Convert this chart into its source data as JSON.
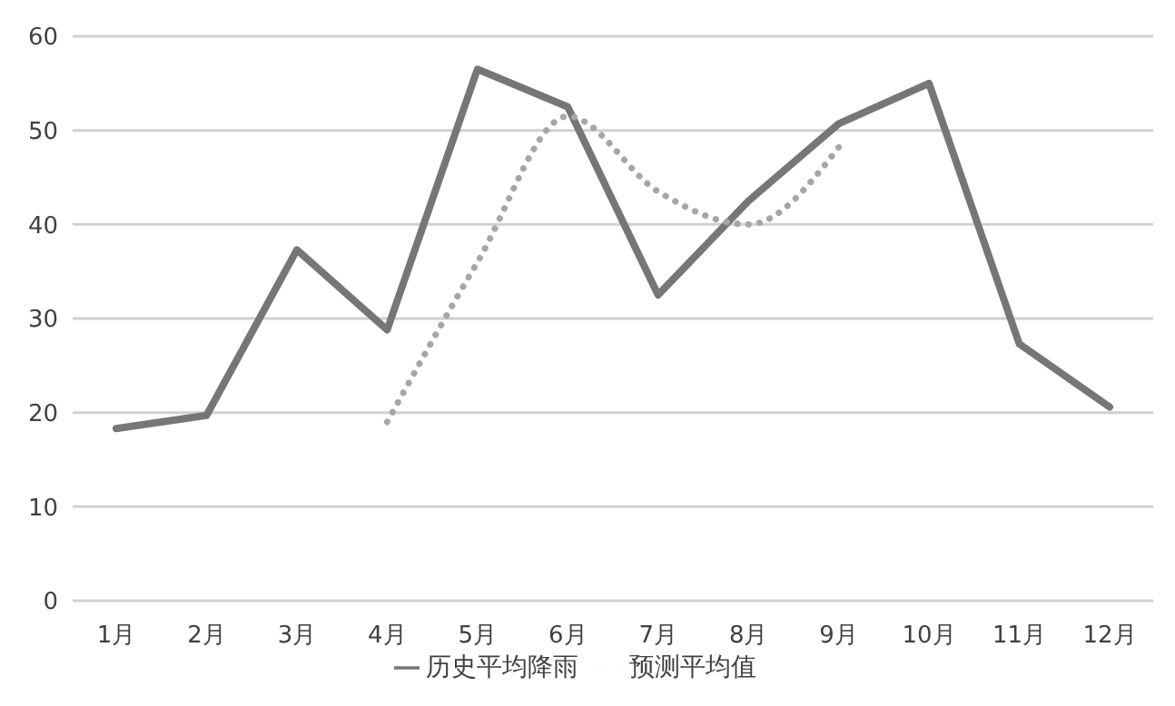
{
  "chart_data": {
    "type": "line",
    "categories": [
      "1月",
      "2月",
      "3月",
      "4月",
      "5月",
      "6月",
      "7月",
      "8月",
      "9月",
      "10月",
      "11月",
      "12月"
    ],
    "series": [
      {
        "name": "历史平均降雨",
        "color": "#767676",
        "line_style": "solid",
        "values": [
          18.3,
          19.7,
          37.3,
          28.8,
          56.5,
          52.5,
          32.5,
          42.5,
          50.7,
          55,
          27.3,
          20.6
        ]
      },
      {
        "name": "预测平均值",
        "color": "#a6a6a6",
        "line_style": "dotted",
        "values": [
          null,
          null,
          null,
          19,
          36,
          51.5,
          43.5,
          40,
          48.2,
          null,
          null,
          null
        ]
      }
    ],
    "ylim": [
      0,
      60
    ],
    "yticks": [
      0,
      10,
      20,
      30,
      40,
      50,
      60
    ],
    "grid": "y",
    "legend": "bottom",
    "marker": "none"
  }
}
